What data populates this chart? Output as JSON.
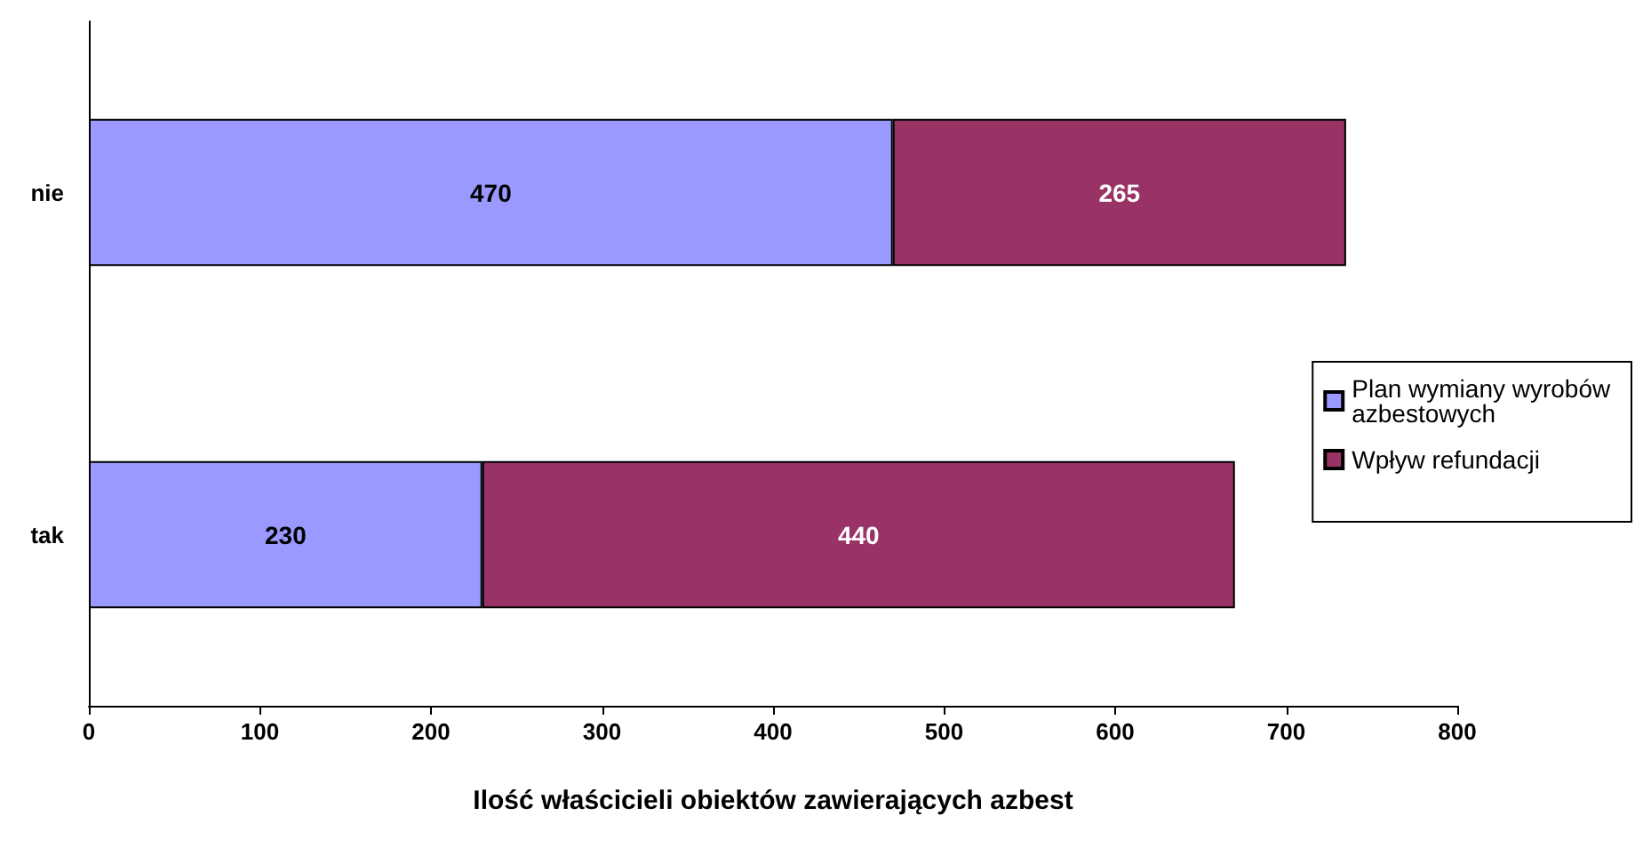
{
  "chart_data": {
    "type": "bar",
    "orientation": "horizontal",
    "stacked": true,
    "xlabel": "Ilość właścicieli obiektów zawierających azbest",
    "categories": [
      "nie",
      "tak"
    ],
    "series": [
      {
        "name": "Plan wymiany wyrobów azbestowych",
        "color": "#9999ff",
        "values": [
          470,
          230
        ]
      },
      {
        "name": "Wpływ refundacji",
        "color": "#993366",
        "values": [
          265,
          440
        ]
      }
    ],
    "xlim": [
      0,
      800
    ],
    "xticks": [
      0,
      100,
      200,
      300,
      400,
      500,
      600,
      700,
      800
    ],
    "grid": false,
    "legend": "right",
    "data_labels": true
  }
}
